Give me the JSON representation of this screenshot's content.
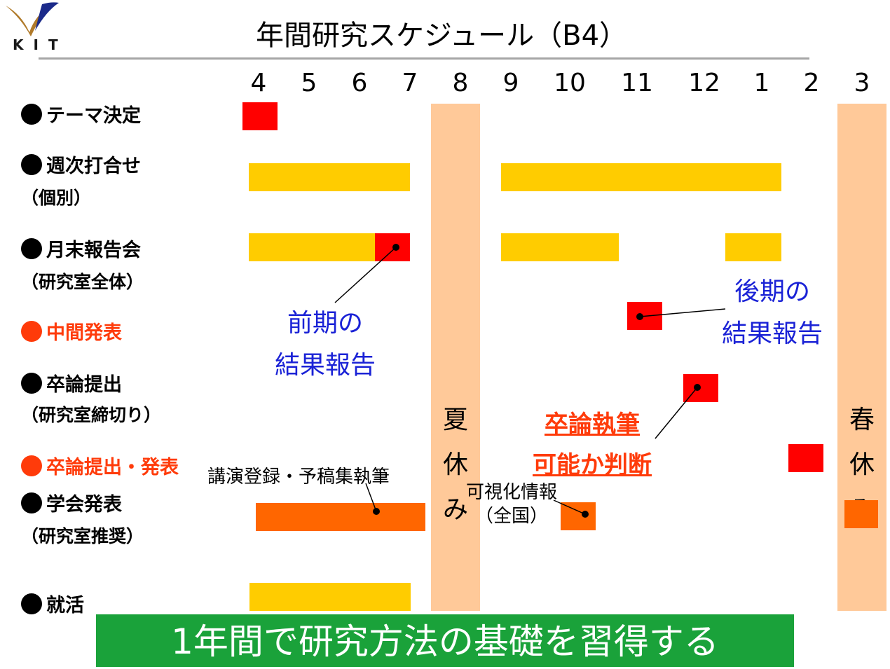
{
  "header": {
    "title": "年間研究スケジュール（B4）",
    "logo_text": "KIT"
  },
  "months": [
    "4",
    "5",
    "6",
    "7",
    "8",
    "9",
    "10",
    "11",
    "12",
    "1",
    "2",
    "3"
  ],
  "rows": [
    {
      "label": "テーマ決定",
      "sub": "",
      "highlight": false
    },
    {
      "label": "週次打合せ",
      "sub": "（個別）",
      "highlight": false
    },
    {
      "label": "月末報告会",
      "sub": "（研究室全体）",
      "highlight": false
    },
    {
      "label": "中間発表",
      "sub": "",
      "highlight": true
    },
    {
      "label": "卒論提出",
      "sub": "（研究室締切り）",
      "highlight": false
    },
    {
      "label": "卒論提出・発表",
      "sub": "",
      "highlight": true
    },
    {
      "label": "学会発表",
      "sub": "（研究室推奨）",
      "highlight": false
    },
    {
      "label": "就活",
      "sub": "",
      "highlight": false
    }
  ],
  "vacations": {
    "summer": [
      "夏",
      "休",
      "み"
    ],
    "spring": [
      "春",
      "休",
      "み"
    ]
  },
  "annotations": {
    "first_half": [
      "前期の",
      "結果報告"
    ],
    "second_half": [
      "後期の",
      "結果報告"
    ],
    "thesis_writing": [
      "卒論執筆",
      "可能か判断"
    ],
    "conference_prep": "講演登録・予稿集執筆",
    "visualization": [
      "可視化情報",
      "（全国）"
    ]
  },
  "banner": {
    "text": "1年間で研究方法の基礎を習得する"
  },
  "colors": {
    "bar_yellow": "#ffcc00",
    "event_red": "#ff0000",
    "conference_orange": "#ff6600",
    "vacation": "#ffc999",
    "banner_green": "#1aa23a",
    "note_blue": "#1a22d6",
    "note_red": "#ff3b0a"
  }
}
